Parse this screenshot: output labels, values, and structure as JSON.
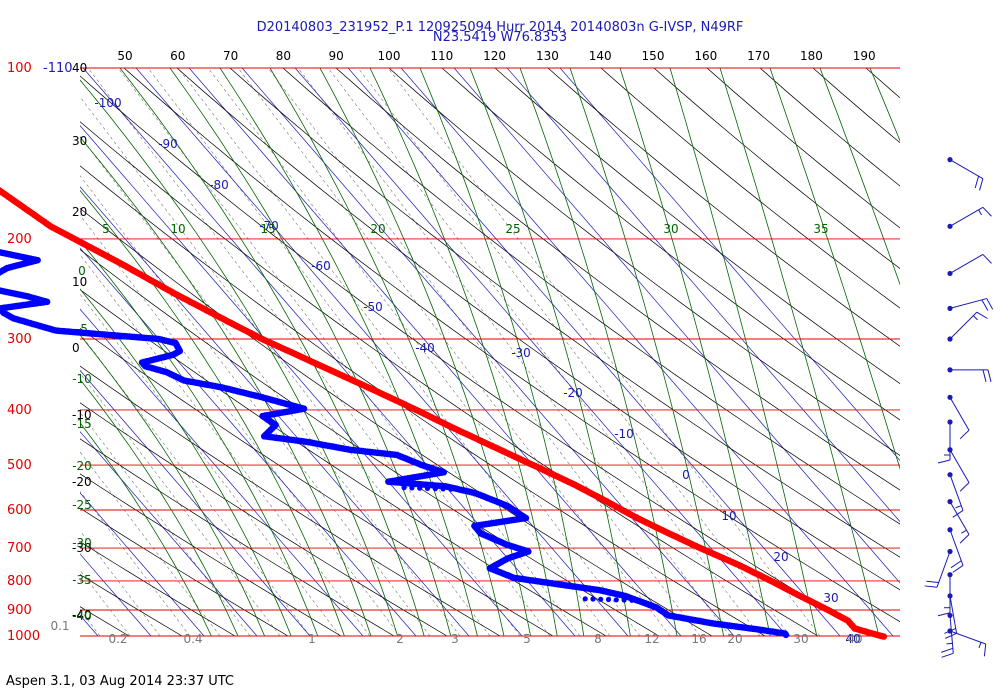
{
  "chart_data": {
    "type": "skew-t",
    "title_line1": "D20140803_231952_P.1 120925094 Hurr 2014, 20140803n G-IVSP, N49RF",
    "title_line2": "N23.5419 W76.8353",
    "footer": "Aspen 3.1, 03 Aug 2014  23:37 UTC",
    "pressure_levels": [
      100,
      200,
      300,
      400,
      500,
      600,
      700,
      800,
      900,
      1000
    ],
    "pressure_label_offset": "-110",
    "height_ticks_kft": [
      40,
      30,
      20,
      10,
      0,
      -10,
      -20,
      -30,
      -40
    ],
    "potential_temperature_ticks": [
      50,
      60,
      70,
      80,
      90,
      100,
      110,
      120,
      130,
      140,
      150,
      160,
      170,
      180,
      190
    ],
    "isotherm_labels": [
      -100,
      -90,
      -80,
      -70,
      -60,
      -50,
      -40,
      -30,
      -20,
      -10,
      0,
      10,
      20,
      30,
      40
    ],
    "moist_adiabat_labels": [
      5,
      10,
      15,
      20,
      25,
      30,
      35
    ],
    "left_green_labels": [
      "5",
      "0",
      "-5",
      "-10",
      "-15",
      "-20",
      "-25",
      "-30",
      "-35",
      "-40"
    ],
    "mixing_ratio_labels": [
      "0.1",
      "0.2",
      "0.4",
      "1",
      "2",
      "3",
      "5",
      "8",
      "12",
      "16",
      "20",
      "30",
      "40"
    ],
    "temperature_profile": [
      {
        "p": 160,
        "t": -66.5
      },
      {
        "p": 190,
        "t": -62
      },
      {
        "p": 220,
        "t": -55
      },
      {
        "p": 250,
        "t": -49.5
      },
      {
        "p": 280,
        "t": -44
      },
      {
        "p": 300,
        "t": -40.5
      },
      {
        "p": 320,
        "t": -36.5
      },
      {
        "p": 350,
        "t": -31
      },
      {
        "p": 380,
        "t": -26
      },
      {
        "p": 400,
        "t": -23
      },
      {
        "p": 430,
        "t": -19
      },
      {
        "p": 460,
        "t": -15
      },
      {
        "p": 500,
        "t": -10
      },
      {
        "p": 540,
        "t": -5.5
      },
      {
        "p": 580,
        "t": -2
      },
      {
        "p": 620,
        "t": 1
      },
      {
        "p": 660,
        "t": 4.5
      },
      {
        "p": 700,
        "t": 8
      },
      {
        "p": 750,
        "t": 12.5
      },
      {
        "p": 800,
        "t": 16
      },
      {
        "p": 850,
        "t": 19
      },
      {
        "p": 900,
        "t": 22
      },
      {
        "p": 940,
        "t": 24
      },
      {
        "p": 970,
        "t": 24
      },
      {
        "p": 990,
        "t": 26.5
      },
      {
        "p": 1005,
        "t": 28.5
      }
    ],
    "temperature_outlier": {
      "p": 122,
      "t": -75
    },
    "dewpoint_profile": [
      {
        "p": 200,
        "t": -82
      },
      {
        "p": 208,
        "t": -78.5
      },
      {
        "p": 218,
        "t": -70
      },
      {
        "p": 225,
        "t": -77
      },
      {
        "p": 238,
        "t": -84
      },
      {
        "p": 244,
        "t": -84
      },
      {
        "p": 252,
        "t": -78
      },
      {
        "p": 258,
        "t": -75
      },
      {
        "p": 265,
        "t": -85
      },
      {
        "p": 270,
        "t": -85
      },
      {
        "p": 276,
        "t": -84
      },
      {
        "p": 290,
        "t": -78
      },
      {
        "p": 300,
        "t": -60
      },
      {
        "p": 305,
        "t": -57.5
      },
      {
        "p": 315,
        "t": -58
      },
      {
        "p": 320,
        "t": -60
      },
      {
        "p": 330,
        "t": -67
      },
      {
        "p": 335,
        "t": -67
      },
      {
        "p": 343,
        "t": -64
      },
      {
        "p": 355,
        "t": -62
      },
      {
        "p": 365,
        "t": -56
      },
      {
        "p": 380,
        "t": -50
      },
      {
        "p": 398,
        "t": -44
      },
      {
        "p": 410,
        "t": -53
      },
      {
        "p": 425,
        "t": -52
      },
      {
        "p": 445,
        "t": -56
      },
      {
        "p": 455,
        "t": -49
      },
      {
        "p": 470,
        "t": -42
      },
      {
        "p": 480,
        "t": -34
      },
      {
        "p": 500,
        "t": -31
      },
      {
        "p": 515,
        "t": -28
      },
      {
        "p": 535,
        "t": -40
      },
      {
        "p": 545,
        "t": -30
      },
      {
        "p": 560,
        "t": -25.5
      },
      {
        "p": 590,
        "t": -21.5
      },
      {
        "p": 620,
        "t": -20
      },
      {
        "p": 640,
        "t": -31
      },
      {
        "p": 660,
        "t": -31
      },
      {
        "p": 690,
        "t": -28
      },
      {
        "p": 710,
        "t": -25
      },
      {
        "p": 730,
        "t": -30
      },
      {
        "p": 760,
        "t": -35
      },
      {
        "p": 790,
        "t": -32
      },
      {
        "p": 810,
        "t": -25
      },
      {
        "p": 830,
        "t": -18
      },
      {
        "p": 850,
        "t": -14
      },
      {
        "p": 870,
        "t": -12
      },
      {
        "p": 890,
        "t": -10
      },
      {
        "p": 920,
        "t": -9
      },
      {
        "p": 950,
        "t": -2
      },
      {
        "p": 975,
        "t": 6
      },
      {
        "p": 990,
        "t": 10
      },
      {
        "p": 1000,
        "t": 10
      }
    ],
    "dewpoint_dotted_segments": [
      [
        {
          "p": 291,
          "t": -76
        },
        {
          "p": 300,
          "t": -60
        }
      ],
      [
        {
          "p": 548,
          "t": -38
        },
        {
          "p": 552,
          "t": -28
        }
      ],
      [
        {
          "p": 860,
          "t": -22
        },
        {
          "p": 866,
          "t": -12
        }
      ]
    ],
    "wind_barbs": [
      {
        "p": 145,
        "dir": 120,
        "spd": 20
      },
      {
        "p": 190,
        "dir": 60,
        "spd": 15
      },
      {
        "p": 230,
        "dir": 60,
        "spd": 10
      },
      {
        "p": 265,
        "dir": 75,
        "spd": 20
      },
      {
        "p": 300,
        "dir": 45,
        "spd": 15
      },
      {
        "p": 340,
        "dir": 90,
        "spd": 20
      },
      {
        "p": 380,
        "dir": 150,
        "spd": 10
      },
      {
        "p": 420,
        "dir": 180,
        "spd": 15
      },
      {
        "p": 470,
        "dir": 150,
        "spd": 10
      },
      {
        "p": 520,
        "dir": 160,
        "spd": 15
      },
      {
        "p": 580,
        "dir": 150,
        "spd": 15
      },
      {
        "p": 650,
        "dir": 160,
        "spd": 20
      },
      {
        "p": 710,
        "dir": 200,
        "spd": 20
      },
      {
        "p": 780,
        "dir": 180,
        "spd": 15
      },
      {
        "p": 850,
        "dir": 170,
        "spd": 20
      },
      {
        "p": 920,
        "dir": 175,
        "spd": 25
      },
      {
        "p": 980,
        "dir": 110,
        "spd": 15
      }
    ],
    "colors": {
      "isobar": "#e00000",
      "isobar_label": "#e00000",
      "isotherm": "#1a1ab4",
      "dry_adiabat": "#000000",
      "moist_adiabat": "#006400",
      "mixing_ratio": "#777777",
      "temperature": "#ff0000",
      "dewpoint": "#0000ff",
      "wind_barb": "#1a1ab4"
    }
  }
}
